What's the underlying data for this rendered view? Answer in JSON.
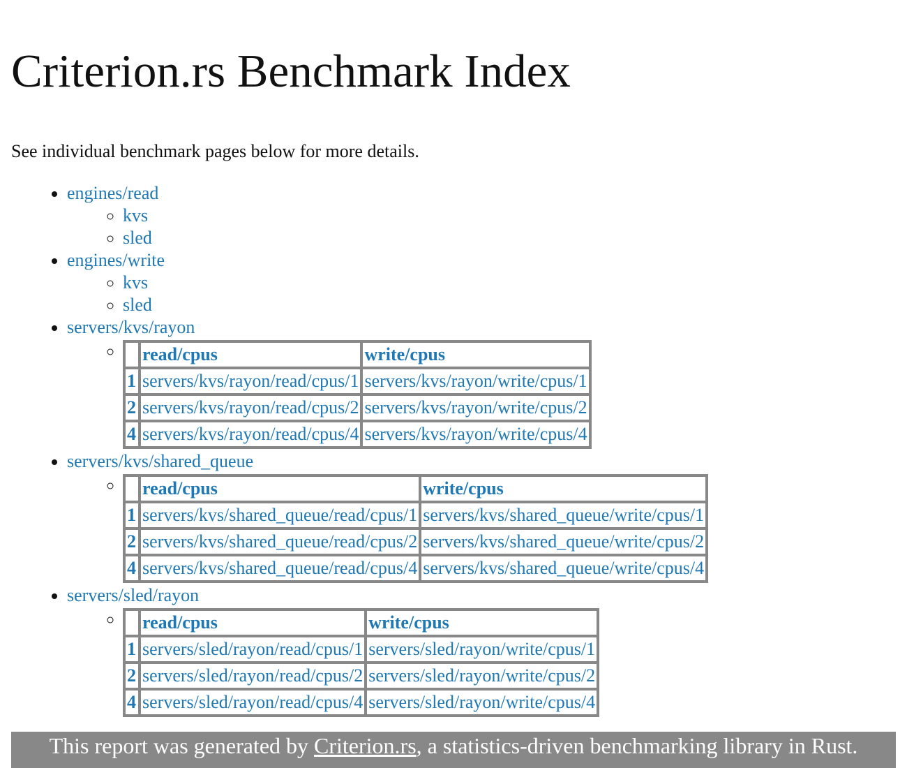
{
  "title": "Criterion.rs Benchmark Index",
  "intro": "See individual benchmark pages below for more details.",
  "groups": [
    {
      "name": "engines/read",
      "items": [
        "kvs",
        "sled"
      ]
    },
    {
      "name": "engines/write",
      "items": [
        "kvs",
        "sled"
      ]
    }
  ],
  "table_groups": [
    {
      "name": "servers/kvs/rayon",
      "headers": [
        "read/cpus",
        "write/cpus"
      ],
      "rows": [
        {
          "key": "1",
          "read": "servers/kvs/rayon/read/cpus/1",
          "write": "servers/kvs/rayon/write/cpus/1"
        },
        {
          "key": "2",
          "read": "servers/kvs/rayon/read/cpus/2",
          "write": "servers/kvs/rayon/write/cpus/2"
        },
        {
          "key": "4",
          "read": "servers/kvs/rayon/read/cpus/4",
          "write": "servers/kvs/rayon/write/cpus/4"
        }
      ]
    },
    {
      "name": "servers/kvs/shared_queue",
      "headers": [
        "read/cpus",
        "write/cpus"
      ],
      "rows": [
        {
          "key": "1",
          "read": "servers/kvs/shared_queue/read/cpus/1",
          "write": "servers/kvs/shared_queue/write/cpus/1"
        },
        {
          "key": "2",
          "read": "servers/kvs/shared_queue/read/cpus/2",
          "write": "servers/kvs/shared_queue/write/cpus/2"
        },
        {
          "key": "4",
          "read": "servers/kvs/shared_queue/read/cpus/4",
          "write": "servers/kvs/shared_queue/write/cpus/4"
        }
      ]
    },
    {
      "name": "servers/sled/rayon",
      "headers": [
        "read/cpus",
        "write/cpus"
      ],
      "rows": [
        {
          "key": "1",
          "read": "servers/sled/rayon/read/cpus/1",
          "write": "servers/sled/rayon/write/cpus/1"
        },
        {
          "key": "2",
          "read": "servers/sled/rayon/read/cpus/2",
          "write": "servers/sled/rayon/write/cpus/2"
        },
        {
          "key": "4",
          "read": "servers/sled/rayon/read/cpus/4",
          "write": "servers/sled/rayon/write/cpus/4"
        }
      ]
    }
  ],
  "footer": {
    "prefix": "This report was generated by ",
    "link": "Criterion.rs",
    "suffix": ", a statistics-driven benchmarking library in Rust."
  }
}
